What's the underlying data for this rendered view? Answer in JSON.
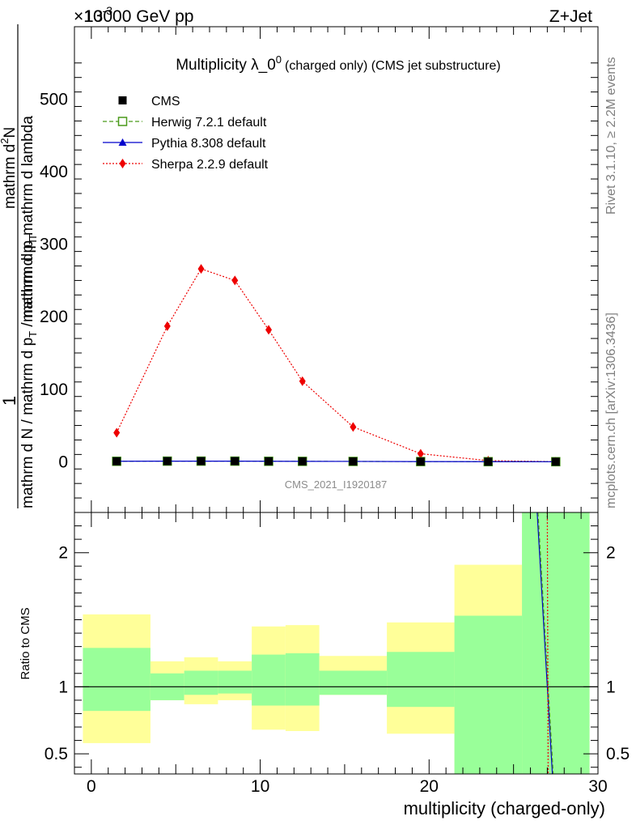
{
  "header": {
    "energy_label": "13000 GeV pp",
    "process_label": "Z+Jet",
    "scale_factor": "×10",
    "scale_exp": "-3"
  },
  "side": {
    "rivet_label": "Rivet 3.1.10, ≥ 2.2M events",
    "mcplots_label": "mcplots.cern.ch [arXiv:1306.3436]"
  },
  "chart_data": [
    {
      "type": "line",
      "title_main": "Multiplicity λ_0",
      "title_sup": "0",
      "title_rest": "(charged only) (CMS jet substructure)",
      "ylabel_num": "1",
      "ylabel_line1": "mathrm d N / mathrm d p",
      "ylabel_line1_sub": "T",
      "ylabel_line1b": "mathrm d p",
      "ylabel_line2": "mathrm d",
      "ylabel_line2_sup": "2",
      "ylabel_line2b": "N",
      "ylabel_line3": "mathrm d p",
      "ylabel_line3_sub": "T",
      "ylabel_line3b": "mathrm d lambda",
      "watermark": "CMS_2021_I1920187",
      "ylim": [
        -70,
        600
      ],
      "yticks": [
        0,
        100,
        200,
        300,
        400,
        500
      ],
      "xlim": [
        -1,
        30
      ],
      "x": [
        1.5,
        4.5,
        6.5,
        8.5,
        10.5,
        12.5,
        15.5,
        19.5,
        23.5,
        27.5
      ],
      "x_edges": [
        [
          -0.5,
          3.5
        ],
        [
          3.5,
          5.5
        ],
        [
          5.5,
          7.5
        ],
        [
          7.5,
          9.5
        ],
        [
          9.5,
          11.5
        ],
        [
          11.5,
          13.5
        ],
        [
          13.5,
          17.5
        ],
        [
          17.5,
          21.5
        ],
        [
          21.5,
          25.5
        ],
        [
          25.5,
          29.5
        ]
      ],
      "series": [
        {
          "name": "CMS",
          "values": [
            0.6,
            0.8,
            0.8,
            0.8,
            0.6,
            0.5,
            0.4,
            0.2,
            0.05,
            0.01
          ],
          "color": "#000000",
          "style": "marker"
        },
        {
          "name": "Herwig 7.2.1 default",
          "values": [
            0.6,
            0.8,
            0.8,
            0.8,
            0.6,
            0.5,
            0.4,
            0.2,
            0.05,
            0.01
          ],
          "color": "#4a9a1a",
          "style": "dashed"
        },
        {
          "name": "Pythia 8.308 default",
          "values": [
            0.6,
            0.8,
            0.8,
            0.8,
            0.6,
            0.5,
            0.4,
            0.2,
            0.05,
            0.01
          ],
          "color": "#0000cc",
          "style": "solid"
        },
        {
          "name": "Sherpa 2.2.9 default",
          "values": [
            40,
            187,
            266,
            250,
            182,
            111,
            48,
            11,
            1.5,
            0.1
          ],
          "color": "#ee0000",
          "style": "dotted"
        }
      ]
    },
    {
      "type": "area",
      "ylabel": "Ratio to CMS",
      "xlabel": "multiplicity (charged-only)",
      "ylim": [
        0.35,
        2.3
      ],
      "yticks": [
        0.5,
        1,
        2
      ],
      "xticks": [
        0,
        10,
        20,
        30
      ],
      "reference": 1,
      "bands": [
        {
          "x": [
            -0.5,
            3.5
          ],
          "green": [
            0.82,
            1.29
          ],
          "yellow": [
            0.58,
            1.54
          ]
        },
        {
          "x": [
            3.5,
            5.5
          ],
          "green": [
            0.9,
            1.1
          ],
          "yellow": [
            0.9,
            1.19
          ]
        },
        {
          "x": [
            5.5,
            7.5
          ],
          "green": [
            0.94,
            1.12
          ],
          "yellow": [
            0.87,
            1.22
          ]
        },
        {
          "x": [
            7.5,
            9.5
          ],
          "green": [
            0.95,
            1.12
          ],
          "yellow": [
            0.9,
            1.19
          ]
        },
        {
          "x": [
            9.5,
            11.5
          ],
          "green": [
            0.86,
            1.24
          ],
          "yellow": [
            0.68,
            1.45
          ]
        },
        {
          "x": [
            11.5,
            13.5
          ],
          "green": [
            0.86,
            1.25
          ],
          "yellow": [
            0.67,
            1.46
          ]
        },
        {
          "x": [
            13.5,
            17.5
          ],
          "green": [
            0.94,
            1.12
          ],
          "yellow": [
            0.94,
            1.23
          ]
        },
        {
          "x": [
            17.5,
            21.5
          ],
          "green": [
            0.85,
            1.26
          ],
          "yellow": [
            0.65,
            1.48
          ]
        },
        {
          "x": [
            21.5,
            25.5
          ],
          "green": [
            0.35,
            1.53
          ],
          "yellow": [
            0.35,
            1.91
          ]
        },
        {
          "x": [
            25.5,
            29.5
          ],
          "green": [
            0.35,
            2.3
          ],
          "yellow": [
            0.35,
            2.3
          ]
        }
      ],
      "curves": [
        {
          "name": "Pythia 8.308 default",
          "color": "#0000cc",
          "style": "solid",
          "points": [
            [
              26.4,
              2.3
            ],
            [
              27.3,
              0.35
            ]
          ]
        },
        {
          "name": "Herwig 7.2.1 default",
          "color": "#4a9a1a",
          "style": "dashed",
          "points": [
            [
              26.45,
              2.3
            ],
            [
              27.35,
              0.35
            ]
          ]
        },
        {
          "name": "Sherpa 2.2.9 default",
          "color": "#ee0000",
          "style": "dotted",
          "points": [
            [
              27.0,
              2.3
            ],
            [
              27.05,
              0.35
            ]
          ]
        }
      ]
    }
  ]
}
